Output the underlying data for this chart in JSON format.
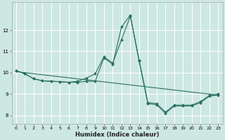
{
  "title": "",
  "xlabel": "Humidex (Indice chaleur)",
  "ylabel": "",
  "bg_color": "#cde8e2",
  "grid_color": "#b8d8d2",
  "line_color": "#2a6e63",
  "x_ticks": [
    0,
    1,
    2,
    3,
    4,
    5,
    6,
    7,
    8,
    9,
    10,
    11,
    12,
    13,
    14,
    15,
    16,
    17,
    18,
    19,
    20,
    21,
    22,
    23
  ],
  "y_ticks": [
    8,
    9,
    10,
    11,
    12
  ],
  "ylim": [
    7.6,
    13.3
  ],
  "xlim": [
    -0.5,
    23.5
  ],
  "line1_x": [
    0,
    1,
    2,
    3,
    4,
    5,
    6,
    7,
    8,
    9,
    10,
    11,
    12,
    13,
    14,
    15,
    16,
    17,
    18,
    19,
    20,
    21,
    22,
    23
  ],
  "line1_y": [
    10.1,
    9.95,
    9.72,
    9.62,
    9.6,
    9.58,
    9.55,
    9.6,
    9.75,
    9.95,
    10.75,
    10.45,
    11.55,
    12.65,
    10.6,
    8.6,
    8.55,
    8.15,
    8.48,
    8.48,
    8.48,
    8.65,
    8.93,
    9.0
  ],
  "line2_x": [
    0,
    1,
    2,
    3,
    4,
    5,
    6,
    7,
    8,
    9,
    10,
    11,
    12,
    13,
    14,
    15,
    16,
    17,
    18,
    19,
    20,
    21,
    22,
    23
  ],
  "line2_y": [
    10.1,
    9.95,
    9.72,
    9.62,
    9.6,
    9.58,
    9.55,
    9.55,
    9.6,
    9.6,
    10.7,
    10.4,
    12.15,
    12.7,
    10.55,
    8.55,
    8.5,
    8.1,
    8.44,
    8.44,
    8.44,
    8.6,
    8.9,
    8.96
  ],
  "line3_x": [
    0,
    23
  ],
  "line3_y": [
    10.05,
    8.95
  ]
}
